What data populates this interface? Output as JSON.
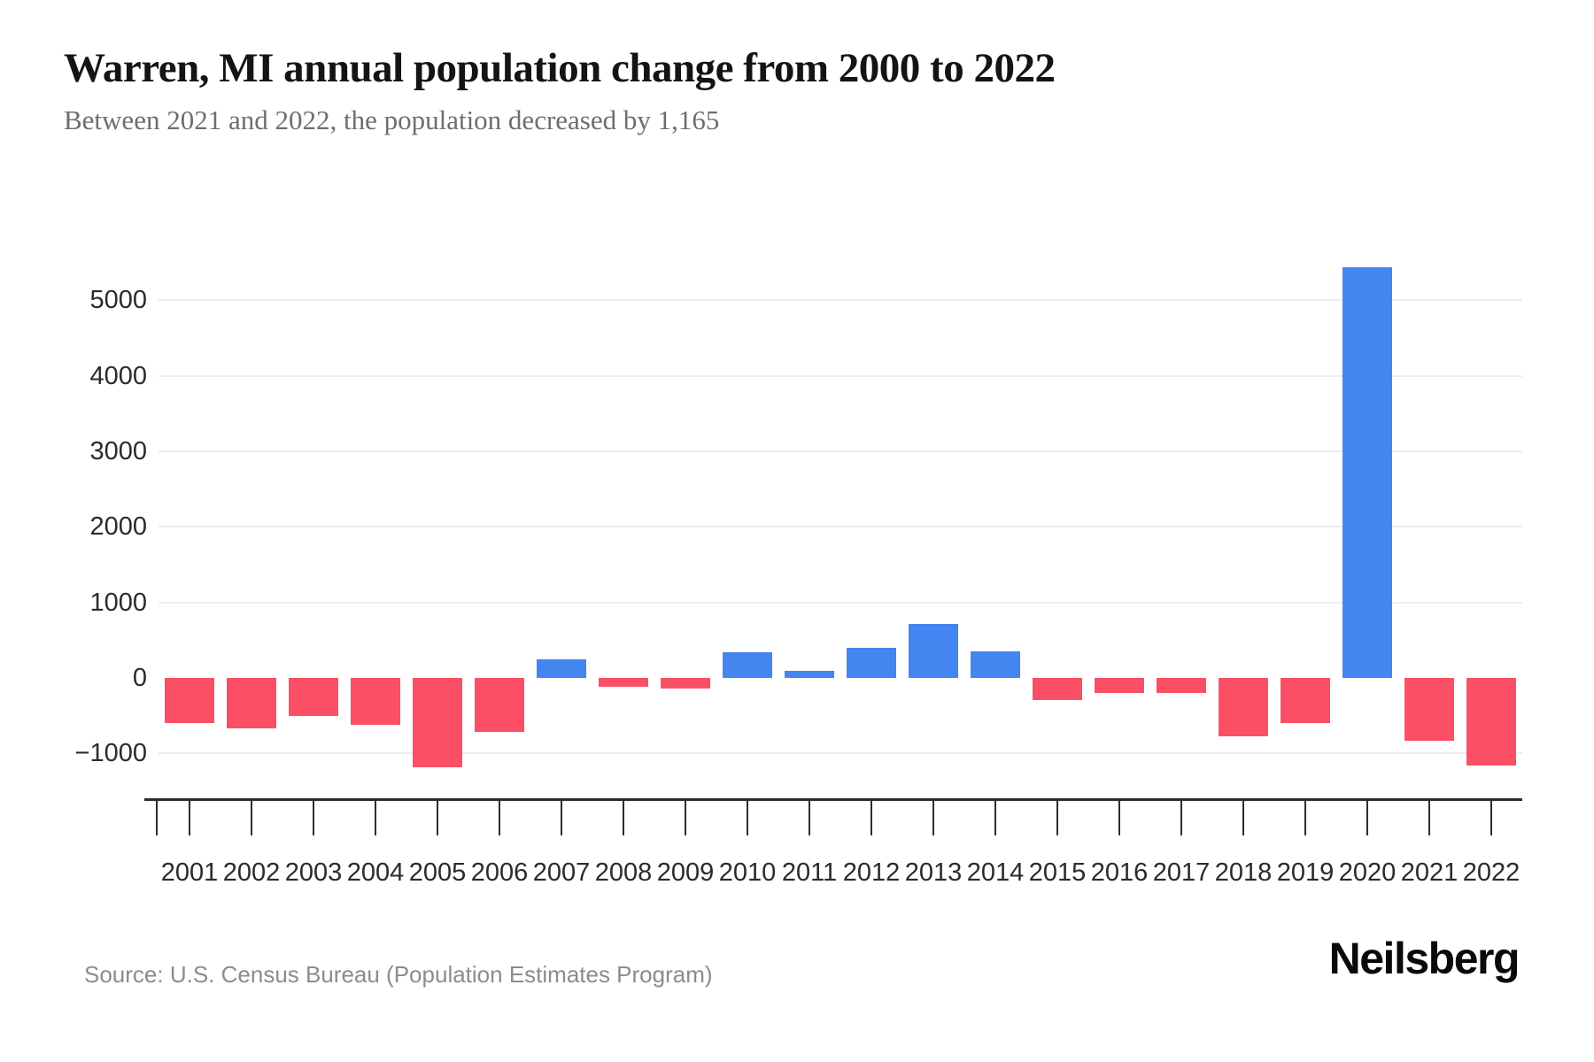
{
  "chart_data": {
    "type": "bar",
    "title": "Warren, MI annual population change from 2000 to 2022",
    "subtitle": "Between 2021 and 2022, the population decreased by 1,165",
    "categories": [
      "2001",
      "2002",
      "2003",
      "2004",
      "2005",
      "2006",
      "2007",
      "2008",
      "2009",
      "2010",
      "2011",
      "2012",
      "2013",
      "2014",
      "2015",
      "2016",
      "2017",
      "2018",
      "2019",
      "2020",
      "2021",
      "2022"
    ],
    "series": [
      {
        "name": "Annual population change",
        "values": [
          -600,
          -670,
          -500,
          -620,
          -1180,
          -710,
          250,
          -120,
          -145,
          340,
          95,
          395,
          710,
          355,
          -290,
          -200,
          -195,
          -770,
          -595,
          5440,
          -830,
          -1165
        ]
      }
    ],
    "xlabel": "",
    "ylabel": "",
    "ytick_values": [
      5000,
      4000,
      3000,
      2000,
      1000,
      0,
      -1000
    ],
    "ytick_labels": [
      "5000",
      "4000",
      "3000",
      "2000",
      "1000",
      "0",
      "−1000"
    ],
    "ylim": [
      -1300,
      5600
    ],
    "grid": "horizontal-only",
    "zero_gridline_drawn": false,
    "legend_position": "none"
  },
  "footer": {
    "source": "Source: U.S. Census Bureau (Population Estimates Program)",
    "brand": "Neilsberg"
  },
  "colors": {
    "positive_bar": "#4485f0",
    "negative_bar": "#fa4f65",
    "gridline": "#ededed",
    "axis": "#2d2d2d",
    "tick_label": "#2b2b2b",
    "title": "#141414",
    "subtitle": "#6e6e6e",
    "source": "#8c8c8c",
    "brand": "#0a0a0a",
    "background": "#ffffff"
  }
}
